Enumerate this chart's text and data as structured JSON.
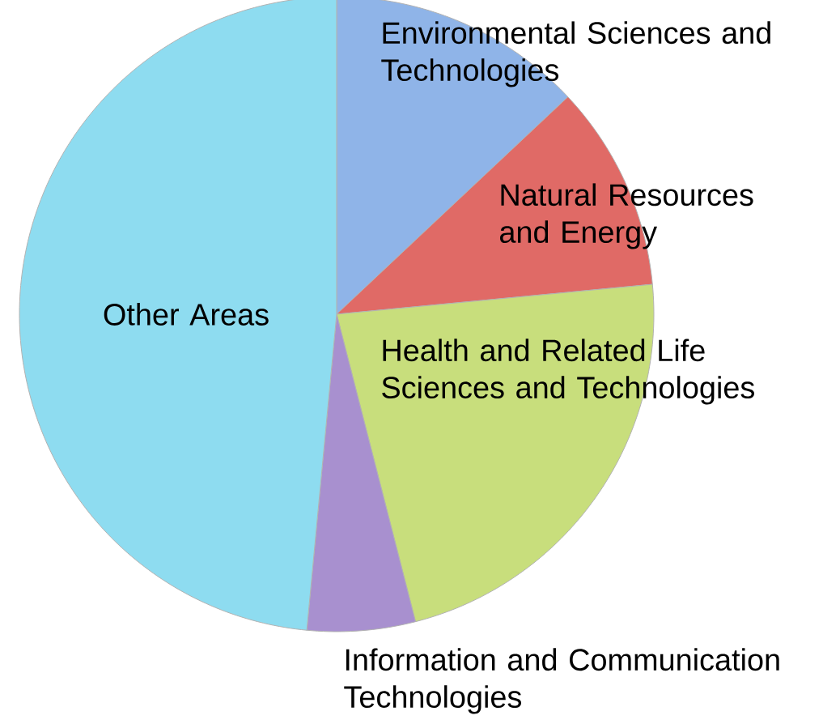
{
  "chart_data": {
    "type": "pie",
    "categories": [
      "Environmental Sciences and Technologies",
      "Natural Resources and Energy",
      "Health and Related Life Sciences and Technologies",
      "Information and Communication Technologies",
      "Other Areas"
    ],
    "values": [
      13,
      10.5,
      22.5,
      5.5,
      48.5
    ],
    "colors": [
      "#8fb4e8",
      "#e06a66",
      "#c8de7c",
      "#a890cf",
      "#8edcf0"
    ]
  }
}
